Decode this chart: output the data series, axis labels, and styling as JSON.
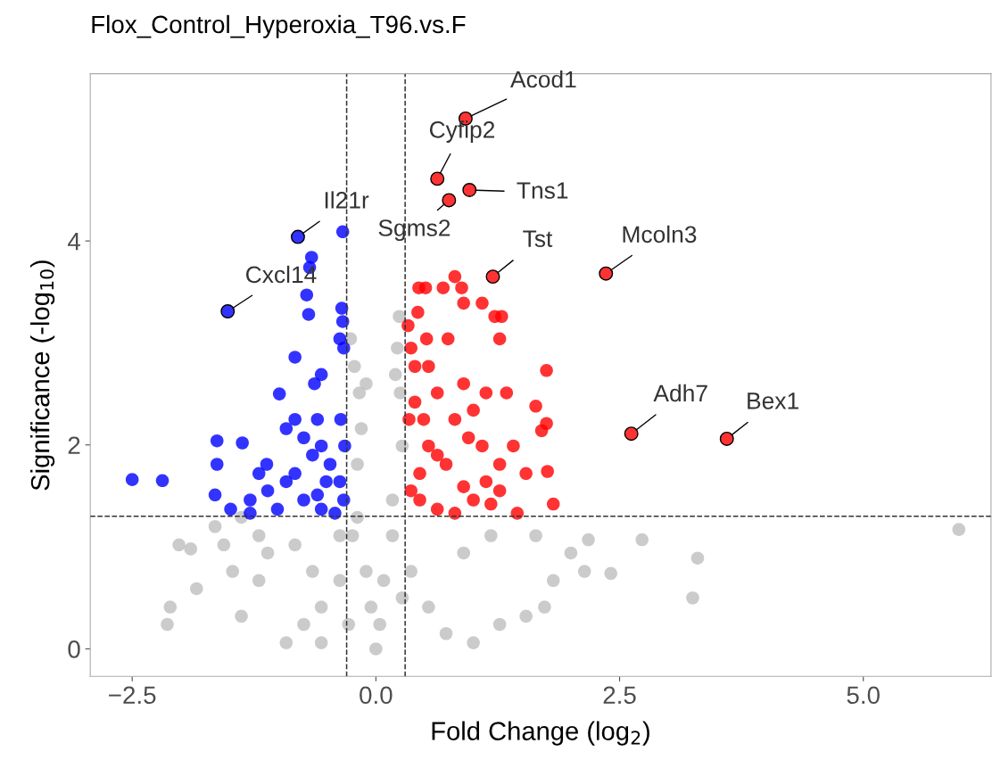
{
  "chart_data": {
    "type": "scatter",
    "title": "Flox_Control_Hyperoxia_T96.vs.F",
    "xlabel": "Fold Change (log$_{2}$)",
    "ylabel": "Significance (-log$_{10}$)",
    "xlim": [
      -2.93,
      6.31
    ],
    "ylim": [
      -0.27,
      5.64
    ],
    "xticks": [
      {
        "value": -2.5,
        "label": "−2.5"
      },
      {
        "value": 0,
        "label": "0.0"
      },
      {
        "value": 2.5,
        "label": "2.5"
      },
      {
        "value": 5,
        "label": "5.0"
      }
    ],
    "yticks": [
      0,
      2,
      4
    ],
    "grid": false,
    "legend": false,
    "marker": "circle",
    "ref_lines": [
      {
        "axis": "x",
        "value": -0.3,
        "line_style": "dashed"
      },
      {
        "axis": "x",
        "value": 0.3,
        "line_style": "dashed"
      },
      {
        "axis": "y",
        "value": 1.3,
        "line_style": "dashed"
      }
    ],
    "series": [
      {
        "color": "#bebebe",
        "x": [
          -2.14,
          -1.9,
          -2.11,
          -1.84,
          -1.65,
          -1.47,
          -1.38,
          -1.2,
          -0.92,
          -0.74,
          -0.56,
          -0.37,
          -0.24,
          -0.19,
          -0.15,
          -0.1,
          -0.17,
          -0.22,
          -0.19,
          -0.1,
          -0.05,
          0.0,
          0.04,
          0.08,
          0.17,
          0.2,
          0.24,
          0.25,
          0.27,
          0.17,
          0.36,
          0.54,
          0.72,
          1.0,
          1.27,
          1.54,
          1.82,
          2.0,
          2.18,
          2.41,
          2.14,
          1.73,
          2.73,
          3.25,
          3.3,
          5.98,
          1.18,
          1.64,
          -0.37,
          -0.83,
          -1.11,
          -0.65,
          -1.2,
          -1.56,
          -1.38,
          -0.26,
          0.22,
          0.9,
          0.27,
          -0.28,
          -0.56,
          -2.02
        ],
        "values": [
          0.24,
          0.98,
          0.41,
          0.59,
          1.2,
          0.76,
          0.32,
          0.67,
          0.06,
          0.24,
          0.41,
          0.67,
          1.11,
          1.81,
          2.16,
          2.6,
          2.51,
          2.77,
          1.29,
          0.76,
          0.41,
          0.0,
          0.24,
          0.67,
          1.46,
          2.69,
          3.26,
          2.51,
          1.99,
          1.11,
          0.76,
          0.41,
          0.15,
          0.06,
          0.24,
          0.32,
          0.67,
          0.94,
          1.07,
          0.74,
          0.76,
          0.41,
          1.07,
          0.5,
          0.89,
          1.17,
          1.11,
          1.11,
          1.11,
          1.02,
          0.94,
          0.76,
          1.11,
          1.02,
          1.29,
          3.04,
          2.95,
          0.94,
          0.5,
          0.24,
          0.06,
          1.02
        ]
      },
      {
        "color": "#0000ff",
        "x": [
          -2.5,
          -2.19,
          -1.63,
          -1.37,
          -1.63,
          -1.65,
          -1.49,
          -1.29,
          -1.12,
          -0.99,
          -0.83,
          -0.69,
          -0.68,
          -0.66,
          -0.71,
          -0.63,
          -0.6,
          -0.56,
          -0.37,
          -0.35,
          -0.33,
          -0.34,
          -0.34,
          -0.92,
          -0.83,
          -0.74,
          -0.56,
          -0.47,
          -0.37,
          -0.33,
          -1.11,
          -0.92,
          -0.74,
          -0.56,
          -0.42,
          -0.32,
          -1.29,
          -1.01,
          -0.36,
          -0.65,
          -0.51,
          -0.6,
          -0.83,
          -1.2,
          -0.8,
          -1.52
        ],
        "values": [
          1.66,
          1.65,
          2.04,
          2.02,
          1.81,
          1.51,
          1.37,
          1.46,
          1.81,
          2.5,
          2.86,
          3.28,
          3.74,
          3.84,
          3.47,
          2.6,
          2.25,
          2.69,
          3.04,
          3.34,
          2.95,
          3.21,
          4.09,
          2.16,
          2.25,
          2.07,
          1.99,
          1.81,
          1.64,
          1.46,
          1.55,
          1.64,
          1.46,
          1.37,
          1.33,
          1.99,
          1.33,
          1.37,
          2.25,
          1.9,
          1.64,
          1.51,
          1.72,
          1.72,
          4.04,
          3.31
        ]
      },
      {
        "color": "#ff0000",
        "x": [
          0.44,
          0.51,
          0.69,
          0.81,
          0.88,
          0.9,
          1.09,
          1.22,
          1.29,
          1.27,
          0.74,
          0.52,
          0.43,
          0.33,
          0.36,
          0.4,
          0.54,
          0.63,
          0.9,
          1.13,
          1.34,
          1.75,
          1.64,
          1.75,
          1.7,
          1.82,
          1.76,
          1.54,
          1.41,
          1.27,
          1.09,
          0.95,
          0.81,
          0.72,
          0.54,
          0.45,
          0.36,
          0.45,
          0.63,
          0.81,
          1.0,
          1.18,
          1.45,
          0.4,
          0.34,
          0.49,
          1.0,
          0.63,
          0.9,
          1.13,
          1.27,
          0.92,
          0.63,
          0.96,
          0.75,
          1.2,
          2.36,
          2.62,
          3.6
        ],
        "values": [
          3.54,
          3.54,
          3.54,
          3.65,
          3.54,
          3.39,
          3.39,
          3.26,
          3.26,
          3.04,
          3.04,
          3.04,
          3.3,
          3.17,
          2.95,
          2.77,
          2.77,
          2.51,
          2.6,
          2.51,
          2.51,
          2.73,
          2.38,
          2.21,
          2.14,
          1.42,
          1.74,
          1.72,
          1.99,
          1.81,
          1.99,
          2.07,
          2.25,
          1.81,
          1.99,
          1.72,
          1.55,
          1.46,
          1.37,
          1.33,
          1.46,
          1.42,
          1.33,
          2.42,
          2.25,
          2.25,
          2.34,
          1.9,
          1.59,
          1.64,
          1.55,
          5.2,
          4.61,
          4.5,
          4.4,
          3.65,
          3.68,
          2.11,
          2.06
        ]
      }
    ],
    "annotations": [
      {
        "text": "Acod1",
        "x": 0.92,
        "y": 5.2
      },
      {
        "text": "Cyfip2",
        "x": 0.63,
        "y": 4.61
      },
      {
        "text": "Tns1",
        "x": 0.96,
        "y": 4.5
      },
      {
        "text": "Sgms2",
        "x": 0.75,
        "y": 4.4
      },
      {
        "text": "Tst",
        "x": 1.2,
        "y": 3.65
      },
      {
        "text": "Mcoln3",
        "x": 2.36,
        "y": 3.68
      },
      {
        "text": "Adh7",
        "x": 2.62,
        "y": 2.11
      },
      {
        "text": "Bex1",
        "x": 3.6,
        "y": 2.06
      },
      {
        "text": "Il21r",
        "x": -0.8,
        "y": 4.04
      },
      {
        "text": "Cxcl14",
        "x": -1.52,
        "y": 3.31
      }
    ]
  }
}
